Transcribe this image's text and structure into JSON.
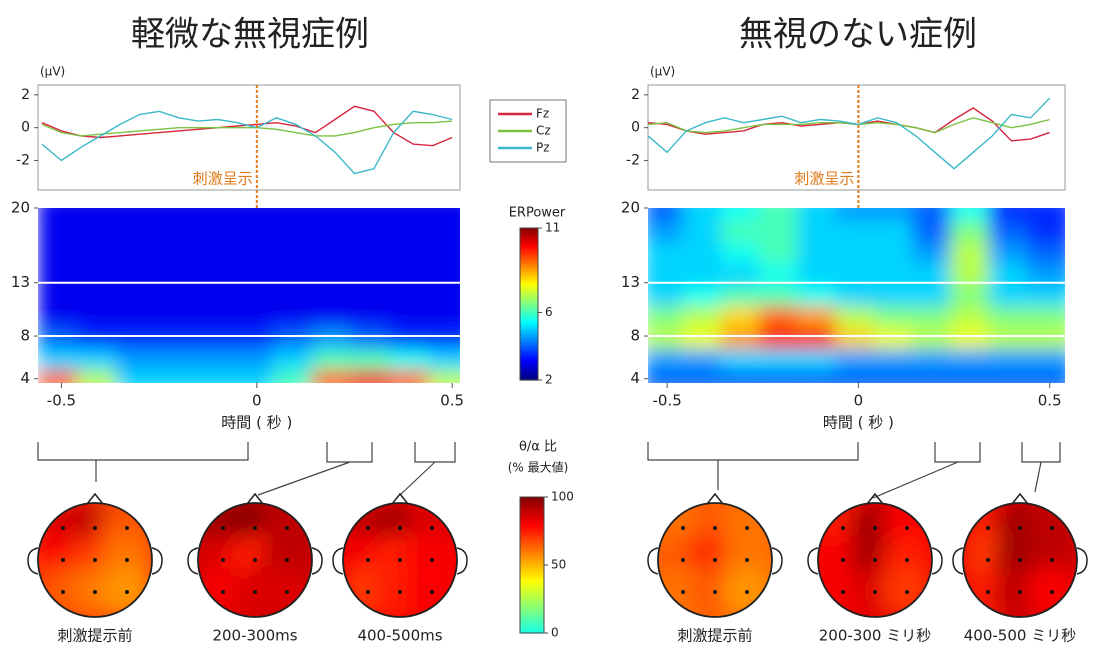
{
  "chart_data": [
    {
      "type": "line",
      "title": "軽微な無視症例",
      "ylabel": "(μV)",
      "annotation": "刺激呈示",
      "event_x": 0,
      "x": [
        -0.55,
        -0.5,
        -0.45,
        -0.4,
        -0.35,
        -0.3,
        -0.25,
        -0.2,
        -0.15,
        -0.1,
        -0.05,
        0,
        0.05,
        0.1,
        0.15,
        0.2,
        0.25,
        0.3,
        0.35,
        0.4,
        0.45,
        0.5
      ],
      "xlim": [
        -0.56,
        0.52
      ],
      "ylim": [
        -3.8,
        2.6
      ],
      "yticks": [
        -2,
        0,
        2
      ],
      "series": [
        {
          "name": "Fz",
          "color": "#d7263d",
          "values": [
            0.3,
            -0.2,
            -0.5,
            -0.6,
            -0.5,
            -0.4,
            -0.3,
            -0.2,
            -0.1,
            0,
            0.1,
            0.2,
            0.3,
            0.1,
            -0.3,
            0.5,
            1.3,
            1.0,
            -0.3,
            -1.0,
            -1.1,
            -0.6
          ]
        },
        {
          "name": "Cz",
          "color": "#7cc242",
          "values": [
            0.2,
            -0.3,
            -0.5,
            -0.4,
            -0.3,
            -0.2,
            -0.1,
            0,
            0,
            0,
            0,
            0,
            -0.1,
            -0.3,
            -0.5,
            -0.5,
            -0.3,
            0,
            0.2,
            0.3,
            0.3,
            0.4
          ]
        },
        {
          "name": "Pz",
          "color": "#3bb8c9",
          "values": [
            -1.0,
            -2.0,
            -1.2,
            -0.5,
            0.2,
            0.8,
            1.0,
            0.6,
            0.4,
            0.5,
            0.3,
            0.0,
            0.6,
            0.2,
            -0.5,
            -1.5,
            -2.8,
            -2.5,
            -0.3,
            1.0,
            0.8,
            0.5
          ]
        }
      ]
    },
    {
      "type": "heatmap",
      "xlabel": "時間 ( 秒 )",
      "xlim": [
        -0.56,
        0.52
      ],
      "ylim": [
        3.6,
        20
      ],
      "xticks": [
        -0.5,
        0,
        0.5
      ],
      "yticks": [
        4,
        8,
        13,
        20
      ],
      "hlines": [
        8,
        13
      ],
      "x": [
        -0.5,
        -0.4,
        -0.3,
        -0.2,
        -0.1,
        0,
        0.1,
        0.2,
        0.3,
        0.4,
        0.5
      ],
      "y": [
        4,
        6,
        8,
        10,
        12,
        14,
        16,
        18,
        20
      ],
      "z": [
        [
          9,
          7,
          5,
          5,
          5,
          5,
          6,
          9,
          10,
          9,
          7
        ],
        [
          5,
          5,
          4.5,
          4.5,
          4.5,
          4.5,
          5,
          6,
          6,
          5.5,
          5
        ],
        [
          4,
          3.5,
          3.5,
          3.5,
          3.5,
          3.5,
          4,
          4.5,
          4,
          3.5,
          3.5
        ],
        [
          3,
          3,
          3,
          3,
          3,
          3,
          3,
          3,
          3,
          3,
          3
        ],
        [
          3,
          3,
          3,
          3,
          3,
          3,
          3,
          3,
          3,
          3,
          3
        ],
        [
          3,
          3,
          3,
          3,
          3,
          3,
          3,
          3,
          3,
          3,
          3
        ],
        [
          3,
          3,
          3,
          3,
          3,
          3,
          3,
          3,
          3,
          3,
          3
        ],
        [
          3,
          3,
          3,
          3,
          3,
          3,
          3,
          3,
          3,
          3,
          3
        ],
        [
          3,
          3,
          3,
          3,
          3,
          3,
          3,
          3,
          3,
          3,
          3
        ]
      ],
      "colorbar": {
        "label": "ERPower",
        "lim": [
          2,
          11
        ],
        "ticks": [
          2,
          6,
          11
        ]
      }
    },
    {
      "type": "line",
      "title": "無視のない症例",
      "ylabel": "(μV)",
      "annotation": "刺激呈示",
      "event_x": 0,
      "x": [
        -0.55,
        -0.5,
        -0.45,
        -0.4,
        -0.35,
        -0.3,
        -0.25,
        -0.2,
        -0.15,
        -0.1,
        -0.05,
        0,
        0.05,
        0.1,
        0.15,
        0.2,
        0.25,
        0.3,
        0.35,
        0.4,
        0.45,
        0.5
      ],
      "xlim": [
        -0.55,
        0.54
      ],
      "ylim": [
        -3.8,
        2.6
      ],
      "yticks": [
        -2,
        0,
        2
      ],
      "series": [
        {
          "values": [
            0.3,
            0.2,
            -0.2,
            -0.4,
            -0.3,
            -0.2,
            0.2,
            0.3,
            0.1,
            0.2,
            0.3,
            0.2,
            0.4,
            0.2,
            0.0,
            -0.3,
            0.5,
            1.2,
            0.4,
            -0.8,
            -0.7,
            -0.3
          ]
        },
        {
          "values": [
            0.2,
            0.3,
            -0.2,
            -0.3,
            -0.2,
            0.0,
            0.2,
            0.2,
            0.2,
            0.3,
            0.3,
            0.2,
            0.3,
            0.2,
            0.0,
            -0.3,
            0.2,
            0.6,
            0.3,
            0.0,
            0.2,
            0.5
          ]
        },
        {
          "values": [
            -0.5,
            -1.5,
            -0.2,
            0.3,
            0.6,
            0.3,
            0.5,
            0.7,
            0.3,
            0.5,
            0.4,
            0.2,
            0.6,
            0.3,
            -0.5,
            -1.5,
            -2.5,
            -1.5,
            -0.5,
            0.8,
            0.6,
            1.8
          ]
        }
      ]
    },
    {
      "type": "heatmap",
      "xlabel": "時間 ( 秒 )",
      "xlim": [
        -0.55,
        0.54
      ],
      "ylim": [
        3.6,
        20
      ],
      "xticks": [
        -0.5,
        0,
        0.5
      ],
      "yticks": [
        4,
        8,
        13,
        20
      ],
      "hlines": [
        8,
        13
      ],
      "x": [
        -0.5,
        -0.4,
        -0.3,
        -0.2,
        -0.1,
        0,
        0.1,
        0.2,
        0.3,
        0.4,
        0.5
      ],
      "y": [
        4,
        6,
        8,
        10,
        12,
        14,
        16,
        18,
        20
      ],
      "z": [
        [
          4,
          4,
          4,
          4,
          4,
          4,
          4,
          4,
          4,
          4,
          4
        ],
        [
          4.5,
          4.5,
          5,
          5,
          5,
          4.5,
          4.5,
          4.5,
          4.5,
          4.5,
          4.5
        ],
        [
          7,
          7.5,
          8.5,
          9.5,
          9.5,
          8,
          7.5,
          7,
          7.5,
          7,
          7
        ],
        [
          6.5,
          7,
          8,
          9,
          8.5,
          7,
          6.5,
          6.5,
          7,
          6.5,
          6.5
        ],
        [
          5,
          5.5,
          6,
          6,
          5.5,
          5,
          5,
          5,
          6.5,
          5,
          5
        ],
        [
          5,
          5,
          5,
          5.5,
          5,
          5,
          5,
          5,
          7,
          5,
          4.5
        ],
        [
          5,
          5,
          5.5,
          6,
          5,
          5,
          5,
          4.5,
          7,
          4.5,
          4
        ],
        [
          4.5,
          5,
          6,
          6,
          5,
          5,
          5,
          4,
          6.5,
          4,
          3.5
        ],
        [
          4,
          5,
          5.5,
          6,
          5,
          4.5,
          4.5,
          4,
          5.5,
          3.5,
          3.5
        ]
      ]
    },
    {
      "type": "topomap",
      "labels": [
        "刺激提示前",
        "200-300ms",
        "400-500ms"
      ],
      "values": [
        [
          85,
          90,
          65,
          80,
          70,
          60,
          65,
          60,
          55
        ],
        [
          95,
          100,
          90,
          85,
          75,
          90,
          80,
          85,
          85
        ],
        [
          90,
          95,
          85,
          80,
          75,
          80,
          70,
          75,
          80
        ]
      ],
      "colorbar": {
        "label": "θ/α 比",
        "sublabel": "(% 最大値)",
        "lim": [
          0,
          100
        ],
        "ticks": [
          0,
          50,
          100
        ]
      }
    },
    {
      "type": "topomap",
      "labels": [
        "刺激提示前",
        "200-300 ミリ秒",
        "400-500 ミリ秒"
      ],
      "values": [
        [
          60,
          65,
          60,
          65,
          75,
          60,
          60,
          65,
          55
        ],
        [
          75,
          95,
          80,
          80,
          95,
          75,
          80,
          85,
          70
        ],
        [
          75,
          95,
          90,
          70,
          95,
          90,
          75,
          90,
          80
        ]
      ]
    }
  ]
}
